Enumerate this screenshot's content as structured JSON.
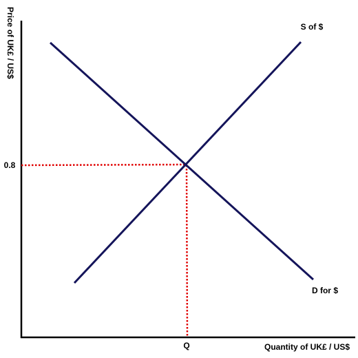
{
  "axes": {
    "y_label": "Price of UK£ / US$",
    "x_label": "Quantity of UK£ / US$"
  },
  "curves": {
    "supply_label": "S of $",
    "demand_label": "D for $"
  },
  "equilibrium": {
    "price_label": "0.8",
    "quantity_label": "Q"
  }
}
